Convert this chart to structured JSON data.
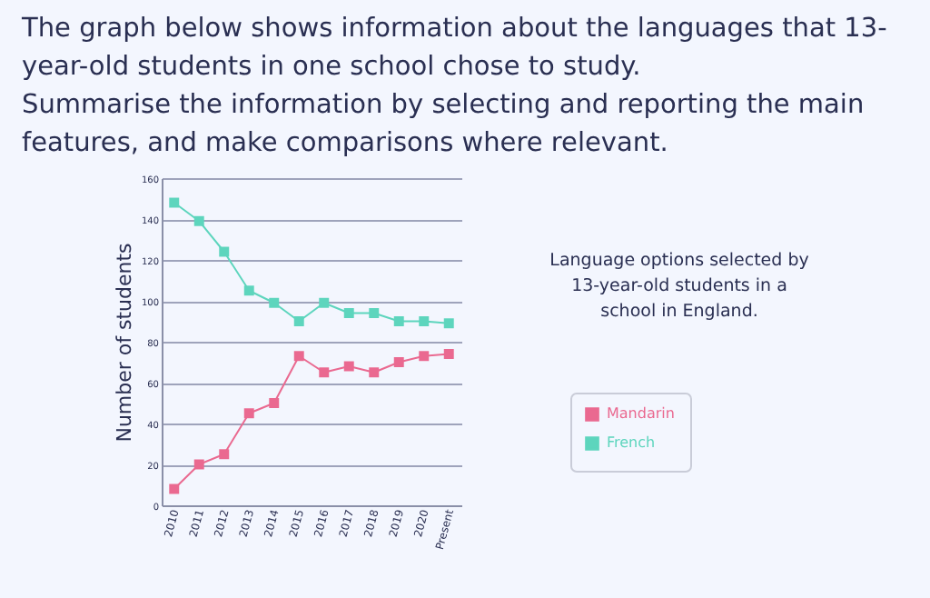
{
  "chart_data": {
    "type": "line",
    "title": "The graph below shows information about the languages that 13-year-old students in one school chose to study.",
    "subtitle": "Summarise the information by selecting and reporting the main features, and make comparisons where relevant.",
    "ylabel": "Number of students",
    "annotations": [
      "Language options selected by 13-year-old students in a school in England."
    ],
    "categories": [
      "2010",
      "2011",
      "2012",
      "2013",
      "2014",
      "2015",
      "2016",
      "2017",
      "2018",
      "2019",
      "2020",
      "Present"
    ],
    "series": [
      {
        "name": "Mandarin",
        "color": "#ea6990",
        "values": [
          8,
          20,
          25,
          45,
          50,
          73,
          65,
          68,
          65,
          70,
          73,
          74
        ]
      },
      {
        "name": "French",
        "color": "#5dd5bd",
        "values": [
          148,
          139,
          124,
          105,
          99,
          90,
          99,
          94,
          94,
          90,
          90,
          89
        ]
      }
    ],
    "ylim": [
      0,
      160
    ],
    "yticks": [
      0,
      20,
      40,
      60,
      80,
      100,
      120,
      140,
      160
    ],
    "grid": "y",
    "legend": "right",
    "marker": "square",
    "line_style": "solid"
  }
}
